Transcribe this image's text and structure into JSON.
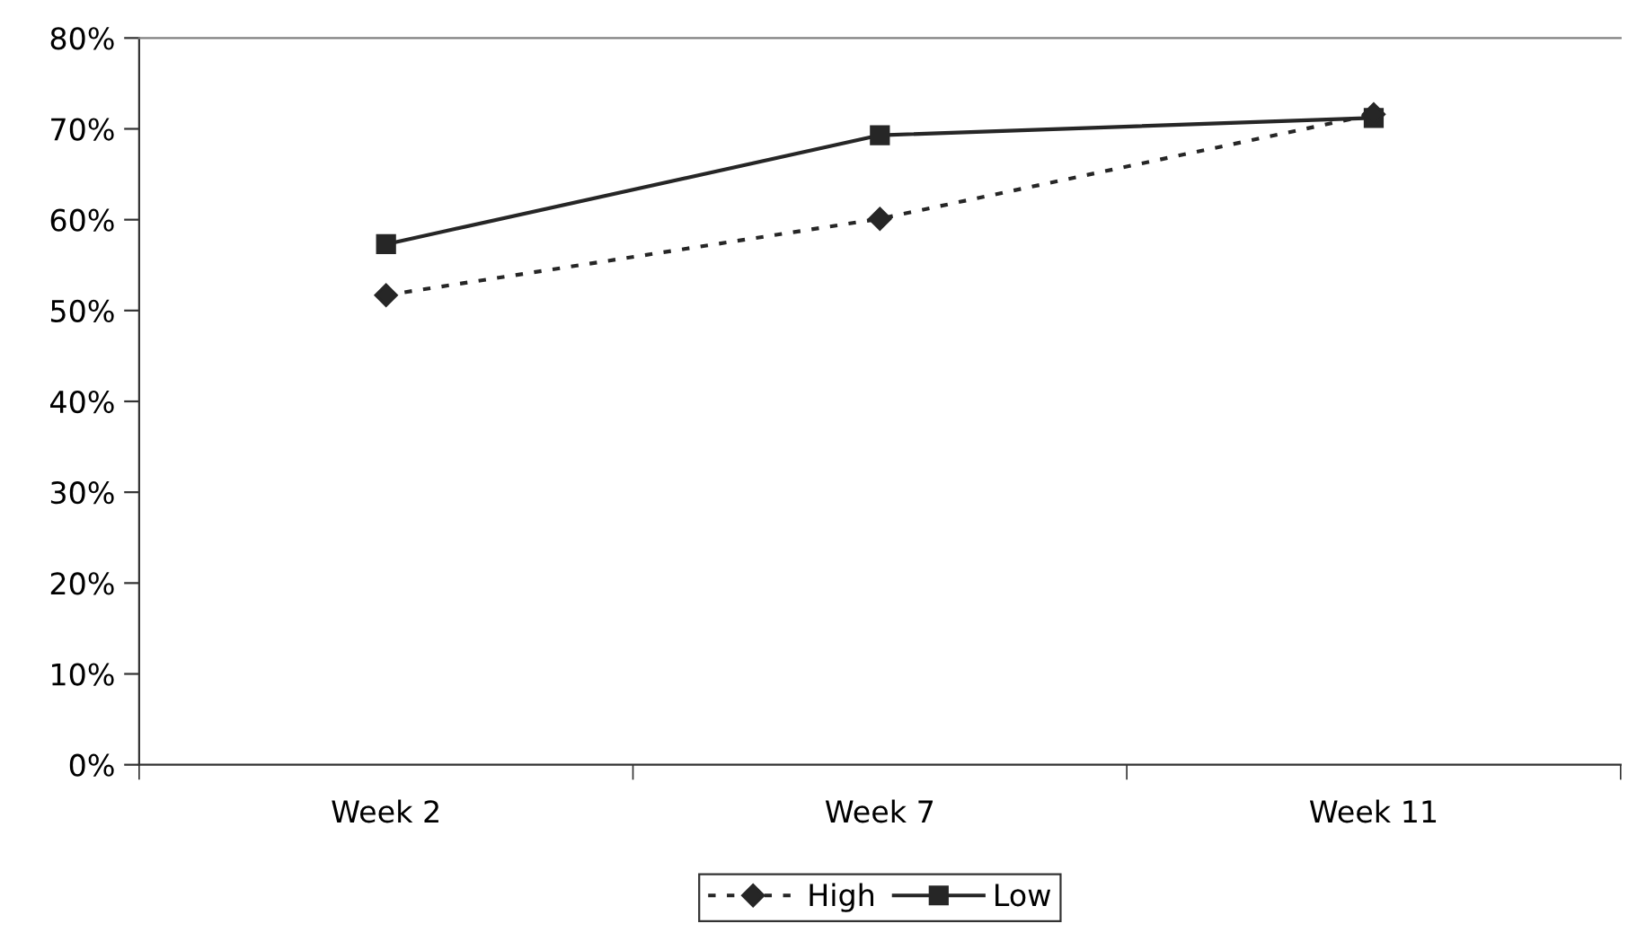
{
  "chart_data": {
    "type": "line",
    "categories": [
      "Week 2",
      "Week 7",
      "Week 11"
    ],
    "series": [
      {
        "name": "High",
        "color": "#262626",
        "values": [
          51.7,
          60.1,
          71.6
        ],
        "marker": "diamond",
        "line_style": "dotted"
      },
      {
        "name": "Low",
        "color": "#262626",
        "values": [
          57.3,
          69.3,
          71.2
        ],
        "marker": "square",
        "line_style": "solid"
      }
    ],
    "ylim": [
      0,
      80
    ],
    "yticks": [
      {
        "value": 0,
        "label": "0%"
      },
      {
        "value": 10,
        "label": "10%"
      },
      {
        "value": 20,
        "label": "20%"
      },
      {
        "value": 30,
        "label": "30%"
      },
      {
        "value": 40,
        "label": "40%"
      },
      {
        "value": 50,
        "label": "50%"
      },
      {
        "value": 60,
        "label": "60%"
      },
      {
        "value": 70,
        "label": "70%"
      },
      {
        "value": 80,
        "label": "80%"
      }
    ],
    "grid": false,
    "legend": "bottom"
  }
}
